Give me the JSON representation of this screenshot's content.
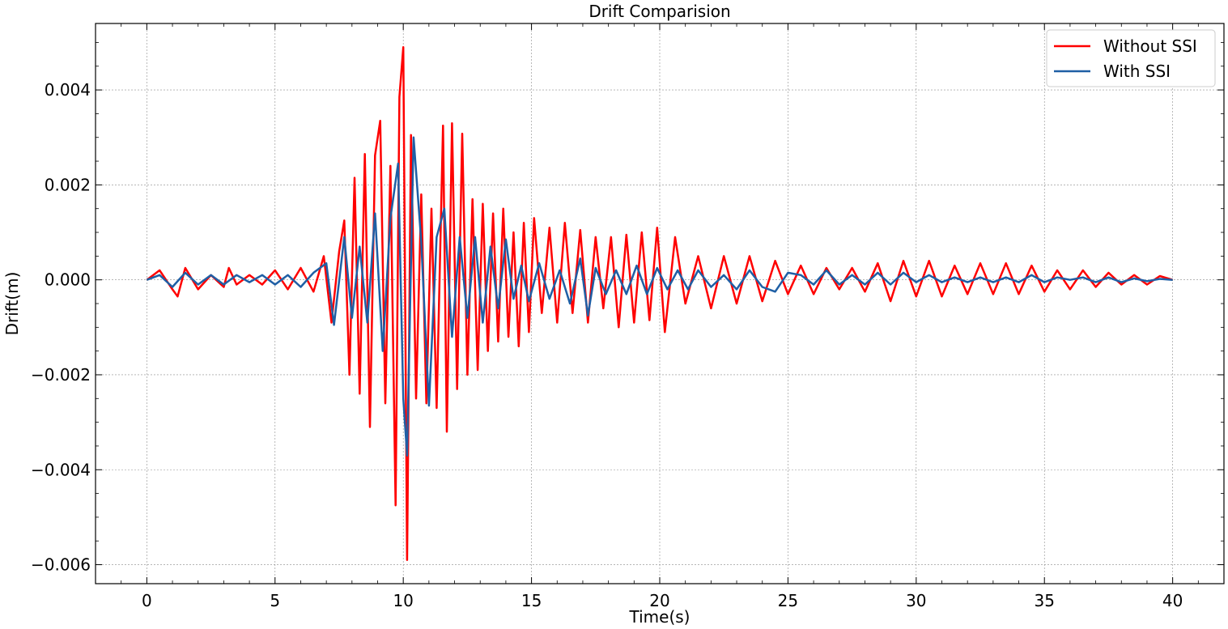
{
  "chart_data": {
    "type": "line",
    "title": "Drift Comparision",
    "xlabel": "Time(s)",
    "ylabel": "Drift(m)",
    "xlim": [
      -2,
      42
    ],
    "ylim": [
      -0.0064,
      0.0054
    ],
    "x_ticks": [
      0,
      5,
      10,
      15,
      20,
      25,
      30,
      35,
      40
    ],
    "x_tick_labels": [
      "0",
      "5",
      "10",
      "15",
      "20",
      "25",
      "30",
      "35",
      "40"
    ],
    "y_ticks": [
      -0.006,
      -0.004,
      -0.002,
      0.0,
      0.002,
      0.004
    ],
    "y_tick_labels": [
      "−0.006",
      "−0.004",
      "−0.002",
      "0.000",
      "0.002",
      "0.004"
    ],
    "grid": true,
    "legend_position": "top-right",
    "series": [
      {
        "name": "Without SSI",
        "color": "#ff0000",
        "x": [
          0,
          0.5,
          1.0,
          1.2,
          1.5,
          2.0,
          2.5,
          3.0,
          3.2,
          3.5,
          4.0,
          4.5,
          5.0,
          5.5,
          6.0,
          6.5,
          6.9,
          7.2,
          7.5,
          7.7,
          7.9,
          8.1,
          8.3,
          8.5,
          8.7,
          8.9,
          9.1,
          9.3,
          9.5,
          9.7,
          9.85,
          10.0,
          10.15,
          10.3,
          10.5,
          10.7,
          10.9,
          11.1,
          11.3,
          11.55,
          11.7,
          11.9,
          12.1,
          12.3,
          12.5,
          12.7,
          12.9,
          13.1,
          13.3,
          13.5,
          13.7,
          13.9,
          14.1,
          14.3,
          14.5,
          14.7,
          14.9,
          15.1,
          15.4,
          15.7,
          16.0,
          16.3,
          16.6,
          16.9,
          17.2,
          17.5,
          17.8,
          18.1,
          18.4,
          18.7,
          19.0,
          19.3,
          19.6,
          19.9,
          20.2,
          20.6,
          21.0,
          21.5,
          22.0,
          22.5,
          23.0,
          23.5,
          24.0,
          24.5,
          25.0,
          25.5,
          26.0,
          26.5,
          27.0,
          27.5,
          28.0,
          28.5,
          29.0,
          29.5,
          30.0,
          30.5,
          31.0,
          31.5,
          32.0,
          32.5,
          33.0,
          33.5,
          34.0,
          34.5,
          35.0,
          35.5,
          36.0,
          36.5,
          37.0,
          37.5,
          38.0,
          38.5,
          39.0,
          39.5,
          40.0
        ],
        "y": [
          0,
          0.0002,
          -0.0002,
          -0.00035,
          0.00025,
          -0.0002,
          0.0001,
          -0.00015,
          0.00025,
          -0.0001,
          0.0001,
          -0.0001,
          0.0002,
          -0.0002,
          0.00025,
          -0.00025,
          0.0005,
          -0.0009,
          0.0006,
          0.00125,
          -0.002,
          0.00215,
          -0.0024,
          0.00265,
          -0.0031,
          0.00262,
          0.00335,
          -0.0026,
          0.0024,
          -0.00475,
          0.00385,
          0.0049,
          -0.0059,
          0.00305,
          -0.0025,
          0.0018,
          -0.0026,
          0.0015,
          -0.0027,
          0.00325,
          -0.0032,
          0.0033,
          -0.0023,
          0.00308,
          -0.002,
          0.0017,
          -0.0019,
          0.0016,
          -0.0015,
          0.0014,
          -0.0013,
          0.0015,
          -0.0012,
          0.001,
          -0.0014,
          0.0012,
          -0.0011,
          0.0013,
          -0.0007,
          0.0011,
          -0.0009,
          0.0012,
          -0.0007,
          0.00105,
          -0.0009,
          0.0009,
          -0.0006,
          0.0009,
          -0.001,
          0.00095,
          -0.0009,
          0.001,
          -0.00085,
          0.0011,
          -0.0011,
          0.0009,
          -0.0005,
          0.0005,
          -0.0006,
          0.0005,
          -0.0005,
          0.0005,
          -0.00045,
          0.0004,
          -0.0003,
          0.0003,
          -0.0003,
          0.00025,
          -0.0002,
          0.00025,
          -0.00025,
          0.00035,
          -0.00045,
          0.0004,
          -0.00035,
          0.0004,
          -0.00035,
          0.0003,
          -0.0003,
          0.00035,
          -0.0003,
          0.00035,
          -0.0003,
          0.0003,
          -0.00025,
          0.0002,
          -0.0002,
          0.0002,
          -0.00015,
          0.00015,
          -0.0001,
          0.0001,
          -0.0001,
          8e-05,
          0
        ]
      },
      {
        "name": "With SSI",
        "color": "#1f5fa5",
        "x": [
          0,
          0.5,
          1.0,
          1.5,
          2.0,
          2.5,
          3.0,
          3.5,
          4.0,
          4.5,
          5.0,
          5.5,
          6.0,
          6.5,
          7.0,
          7.3,
          7.7,
          8.0,
          8.3,
          8.6,
          8.9,
          9.2,
          9.5,
          9.8,
          10.0,
          10.15,
          10.4,
          10.7,
          11.0,
          11.3,
          11.6,
          11.9,
          12.2,
          12.5,
          12.8,
          13.1,
          13.4,
          13.7,
          14.0,
          14.3,
          14.6,
          14.9,
          15.3,
          15.7,
          16.1,
          16.5,
          16.9,
          17.2,
          17.5,
          17.9,
          18.3,
          18.7,
          19.1,
          19.5,
          19.9,
          20.3,
          20.7,
          21.1,
          21.5,
          22.0,
          22.5,
          23.0,
          23.5,
          24.0,
          24.5,
          25.0,
          25.5,
          26.0,
          26.5,
          27.0,
          27.5,
          28.0,
          28.5,
          29.0,
          29.5,
          30.0,
          30.5,
          31.0,
          31.5,
          32.0,
          32.5,
          33.0,
          33.5,
          34.0,
          34.5,
          35.0,
          35.5,
          36.0,
          36.5,
          37.0,
          37.5,
          38.0,
          38.5,
          39.0,
          39.5,
          40.0
        ],
        "y": [
          0,
          0.0001,
          -0.00015,
          0.00015,
          -0.0001,
          0.0001,
          -0.0001,
          0.0001,
          -5e-05,
          0.0001,
          -0.0001,
          0.0001,
          -0.00015,
          0.00015,
          0.00035,
          -0.00095,
          0.0009,
          -0.0008,
          0.0007,
          -0.0009,
          0.0014,
          -0.0015,
          0.0013,
          0.00245,
          -0.0025,
          -0.0037,
          0.003,
          0.0008,
          -0.00265,
          0.0009,
          0.0015,
          -0.0012,
          0.0009,
          -0.0008,
          0.0009,
          -0.0009,
          0.0007,
          -0.0006,
          0.00085,
          -0.0004,
          0.0003,
          -0.00045,
          0.00035,
          -0.0004,
          0.0002,
          -0.0005,
          0.00045,
          -0.00075,
          0.00025,
          -0.0003,
          0.0002,
          -0.0003,
          0.0003,
          -0.0003,
          0.00025,
          -0.0002,
          0.0002,
          -0.0002,
          0.0002,
          -0.00015,
          0.0001,
          -0.0002,
          0.0002,
          -0.00015,
          -0.00025,
          0.00015,
          0.0001,
          -0.0001,
          0.0002,
          -0.0001,
          0.0001,
          -0.0001,
          0.00015,
          -0.0001,
          0.00015,
          -5e-05,
          0.0001,
          -5e-05,
          5e-05,
          -5e-05,
          5e-05,
          -5e-05,
          5e-05,
          -5e-05,
          0.0001,
          -5e-05,
          5e-05,
          0,
          5e-05,
          -5e-05,
          5e-05,
          -5e-05,
          3e-05,
          -3e-05,
          2e-05,
          0
        ]
      }
    ]
  }
}
